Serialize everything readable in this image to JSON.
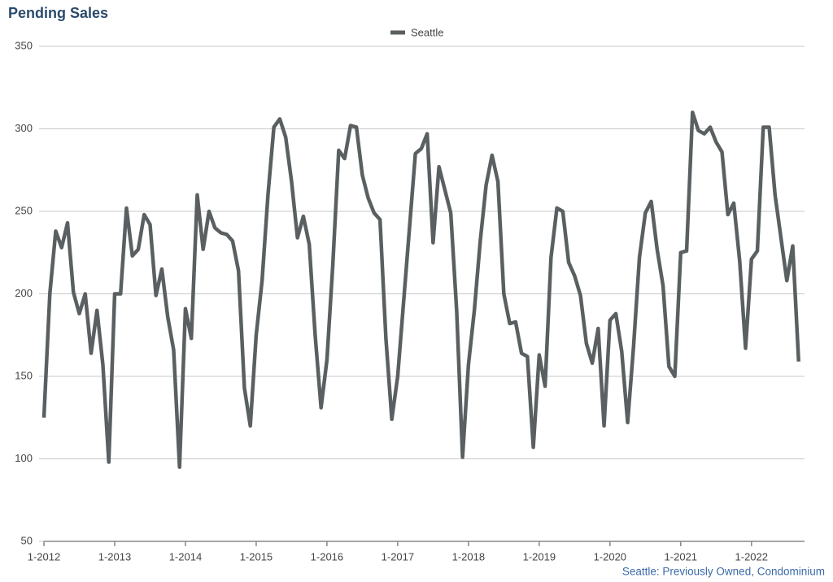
{
  "chart_data": {
    "type": "line",
    "title": "Pending Sales",
    "note": "Seattle: Previously Owned, Condominium",
    "categories": [
      "1-2012",
      null,
      null,
      null,
      null,
      null,
      null,
      null,
      null,
      null,
      null,
      null,
      "1-2013",
      null,
      null,
      null,
      null,
      null,
      null,
      null,
      null,
      null,
      null,
      null,
      "1-2014",
      null,
      null,
      null,
      null,
      null,
      null,
      null,
      null,
      null,
      null,
      null,
      "1-2015",
      null,
      null,
      null,
      null,
      null,
      null,
      null,
      null,
      null,
      null,
      null,
      "1-2016",
      null,
      null,
      null,
      null,
      null,
      null,
      null,
      null,
      null,
      null,
      null,
      "1-2017",
      null,
      null,
      null,
      null,
      null,
      null,
      null,
      null,
      null,
      null,
      null,
      "1-2018",
      null,
      null,
      null,
      null,
      null,
      null,
      null,
      null,
      null,
      null,
      null,
      "1-2019",
      null,
      null,
      null,
      null,
      null,
      null,
      null,
      null,
      null,
      null,
      null,
      "1-2020",
      null,
      null,
      null,
      null,
      null,
      null,
      null,
      null,
      null,
      null,
      null,
      "1-2021",
      null,
      null,
      null,
      null,
      null,
      null,
      null,
      null,
      null,
      null,
      null,
      "1-2022",
      null,
      null,
      null,
      null,
      null,
      null,
      null,
      null
    ],
    "series": [
      {
        "name": "Seattle",
        "color": "#5a6062",
        "values": [
          125,
          200,
          238,
          228,
          243,
          201,
          188,
          200,
          164,
          190,
          157,
          98,
          200,
          200,
          252,
          223,
          227,
          248,
          242,
          199,
          215,
          186,
          166,
          95,
          191,
          173,
          260,
          227,
          250,
          240,
          237,
          236,
          232,
          214,
          143,
          120,
          175,
          208,
          260,
          301,
          306,
          295,
          268,
          234,
          247,
          230,
          175,
          131,
          160,
          218,
          287,
          282,
          302,
          301,
          272,
          258,
          249,
          245,
          173,
          124,
          150,
          195,
          240,
          285,
          288,
          297,
          231,
          277,
          263,
          249,
          190,
          101,
          157,
          190,
          232,
          266,
          284,
          268,
          200,
          182,
          183,
          164,
          162,
          107,
          163,
          144,
          222,
          252,
          250,
          219,
          211,
          199,
          170,
          158,
          179,
          120,
          184,
          188,
          165,
          122,
          168,
          222,
          249,
          256,
          227,
          205,
          156,
          150,
          225,
          226,
          310,
          299,
          297,
          301,
          292,
          286,
          248,
          255,
          220,
          167,
          221,
          226,
          301,
          301,
          260,
          234,
          208,
          229,
          159
        ]
      }
    ],
    "ylim": [
      50,
      350
    ],
    "yticks": [
      50,
      100,
      150,
      200,
      250,
      300,
      350
    ],
    "grid": true,
    "legend": "top"
  }
}
